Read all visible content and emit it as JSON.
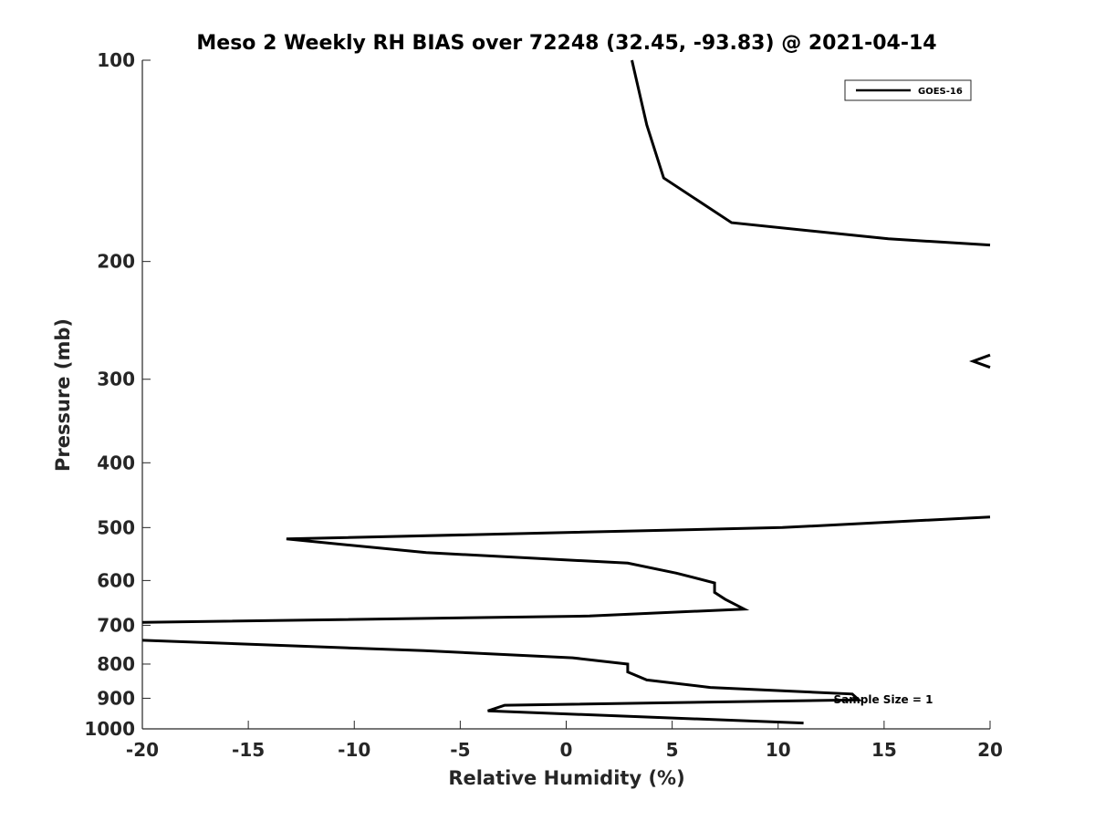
{
  "chart_data": {
    "type": "line",
    "title": "Meso 2 Weekly RH BIAS over 72248 (32.45, -93.83) @ 2021-04-14",
    "xlabel": "Relative Humidity (%)",
    "ylabel": "Pressure (mb)",
    "xlim": [
      -20,
      20
    ],
    "ylim": [
      100,
      1000
    ],
    "y_scale": "log",
    "y_reversed": true,
    "grid": false,
    "legend_position": "top-right",
    "x_ticks": [
      "-20",
      "-15",
      "-10",
      "-5",
      "0",
      "5",
      "10",
      "15",
      "20"
    ],
    "y_ticks": [
      "100",
      "200",
      "300",
      "400",
      "500",
      "600",
      "700",
      "800",
      "900",
      "1000"
    ],
    "annotation": "Sample Size = 1",
    "series": [
      {
        "name": "GOES-16",
        "color": "#000000",
        "segments": [
          {
            "x": [
              3.1,
              3.8,
              4.6,
              7.8,
              15.2,
              20.0
            ],
            "y": [
              100,
              125,
              150,
              175,
              185,
              189
            ]
          },
          {
            "x": [
              20.0,
              19.2,
              20.0
            ],
            "y": [
              276,
              282,
              288
            ]
          },
          {
            "x": [
              20.0,
              10.2,
              -13.2,
              -6.6,
              2.9,
              5.2,
              7.0,
              7.0,
              7.5,
              8.4,
              1.1,
              -20.0
            ],
            "y": [
              482,
              500,
              520,
              545,
              565,
              585,
              605,
              625,
              640,
              662,
              678,
              693
            ]
          },
          {
            "x": [
              -20.0,
              -6.7,
              0.3,
              2.9,
              2.9,
              3.8,
              6.8,
              13.5,
              13.8,
              -2.9,
              -3.7,
              11.2
            ],
            "y": [
              737,
              764,
              783,
              800,
              822,
              845,
              867,
              887,
              905,
              922,
              940,
              980
            ]
          }
        ]
      }
    ]
  }
}
